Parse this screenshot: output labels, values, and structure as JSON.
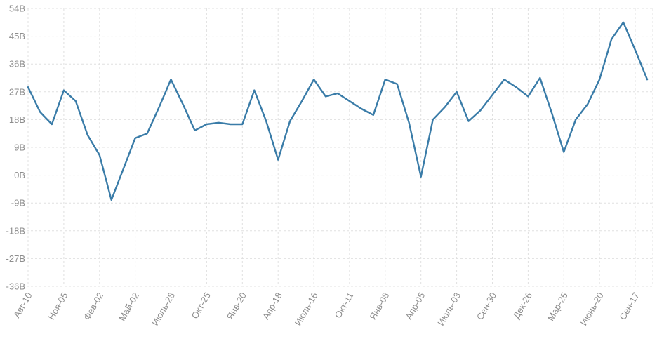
{
  "chart_data": {
    "type": "line",
    "title": "",
    "xlabel": "",
    "ylabel": "",
    "legend": "none",
    "grid": "dashed",
    "background": "#ffffff",
    "series_color": "#3a7ca8",
    "grid_color": "#e0e0e0",
    "axis_label_color": "#8d8d8d",
    "ylim": [
      -36,
      54
    ],
    "y_ticks": [
      "54В",
      "45В",
      "36В",
      "27В",
      "18В",
      "9В",
      "0В",
      "-9В",
      "-18В",
      "-27В",
      "-36В"
    ],
    "y_tick_values": [
      54,
      45,
      36,
      27,
      18,
      9,
      0,
      -9,
      -18,
      -27,
      -36
    ],
    "x_labels": [
      "Авг-10",
      "Ноя-05",
      "Фев-02",
      "Май-02",
      "Июль-28",
      "Окт-25",
      "Янв-20",
      "Апр-18",
      "Июль-16",
      "Окт-11",
      "Янв-08",
      "Апр-05",
      "Июль-03",
      "Сен-30",
      "Дек-26",
      "Мар-25",
      "Июнь-20",
      "Сен-17"
    ],
    "x_label_every": 3,
    "values": [
      28.5,
      20.5,
      16.5,
      27.5,
      24,
      13,
      6.5,
      -8,
      2,
      12,
      13.5,
      22,
      31,
      23,
      14.5,
      16.5,
      17,
      16.5,
      16.5,
      27.5,
      17.5,
      5,
      17.5,
      24,
      31,
      25.5,
      26.5,
      24,
      21.5,
      19.5,
      31,
      29.5,
      17,
      -0.5,
      18,
      22,
      27,
      17.5,
      21,
      26,
      31,
      28.5,
      25.5,
      31.5,
      20,
      7.5,
      18,
      23,
      31,
      44,
      49.5,
      40.5,
      31
    ]
  }
}
